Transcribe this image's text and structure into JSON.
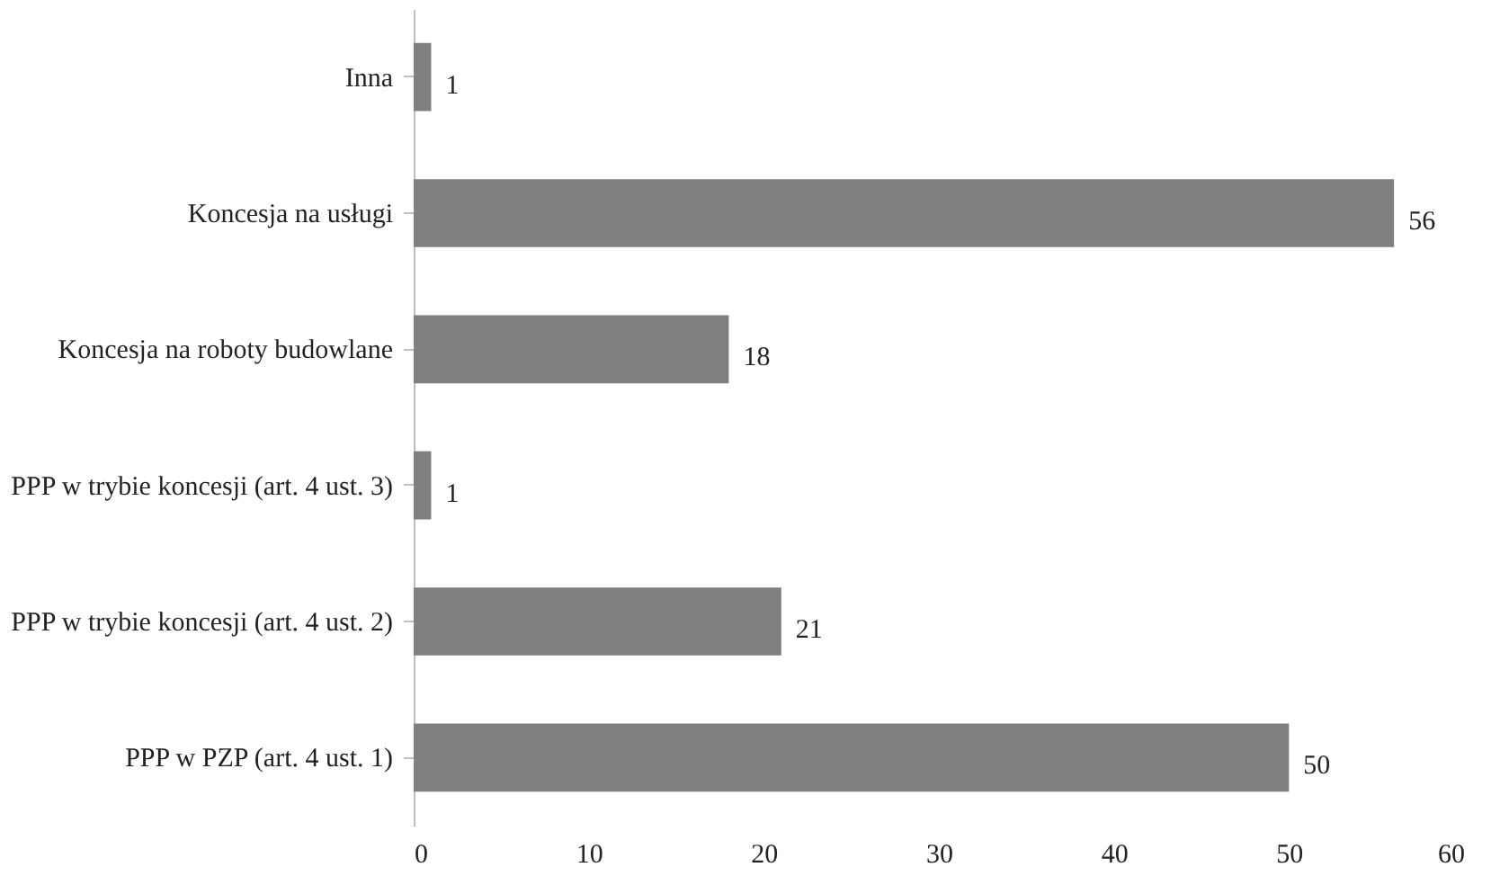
{
  "chart_data": {
    "type": "bar",
    "orientation": "horizontal",
    "categories": [
      "Inna",
      "Koncesja na usługi",
      "Koncesja na roboty budowlane",
      "PPP w trybie koncesji (art. 4 ust. 3)",
      "PPP w trybie koncesji (art. 4 ust. 2)",
      "PPP w PZP (art. 4 ust. 1)"
    ],
    "values": [
      1,
      56,
      18,
      1,
      21,
      50
    ],
    "color": "#7f7f7f",
    "xlim": [
      0,
      60
    ],
    "xticks": [
      0,
      10,
      20,
      30,
      40,
      50,
      60
    ],
    "data_labels": true,
    "grid": false
  }
}
